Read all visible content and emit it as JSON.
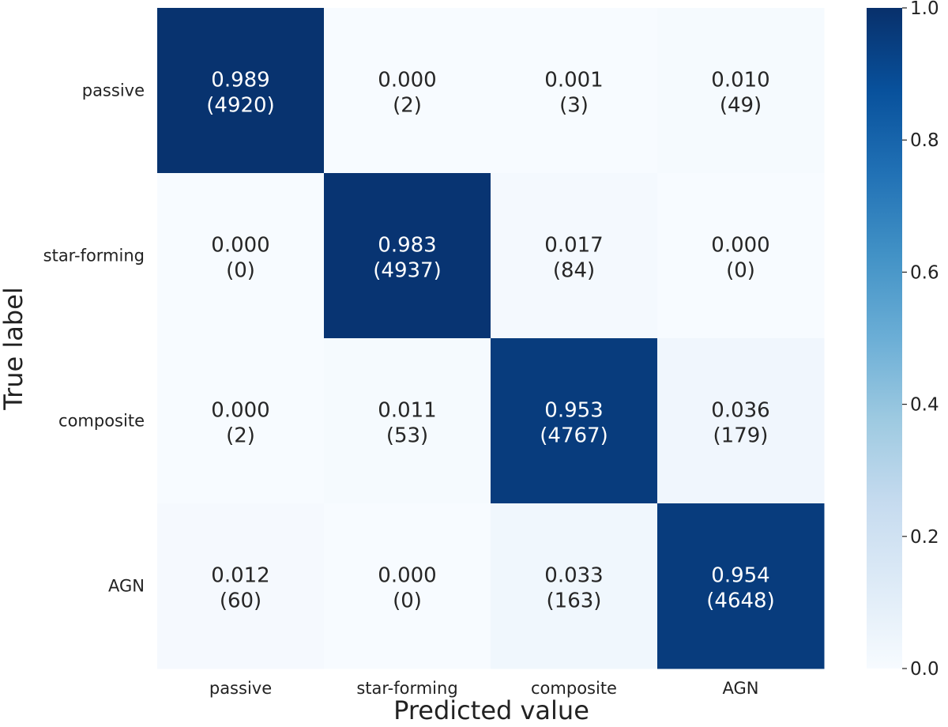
{
  "chart_data": {
    "type": "heatmap",
    "title": "",
    "xlabel": "Predicted value",
    "ylabel": "True label",
    "x_categories": [
      "passive",
      "star-forming",
      "composite",
      "AGN"
    ],
    "y_categories": [
      "passive",
      "star-forming",
      "composite",
      "AGN"
    ],
    "values": [
      [
        0.989,
        0.0,
        0.001,
        0.01
      ],
      [
        0.0,
        0.983,
        0.017,
        0.0
      ],
      [
        0.0,
        0.011,
        0.953,
        0.036
      ],
      [
        0.012,
        0.0,
        0.033,
        0.954
      ]
    ],
    "value_labels": [
      [
        "0.989",
        "0.000",
        "0.001",
        "0.010"
      ],
      [
        "0.000",
        "0.983",
        "0.017",
        "0.000"
      ],
      [
        "0.000",
        "0.011",
        "0.953",
        "0.036"
      ],
      [
        "0.012",
        "0.000",
        "0.033",
        "0.954"
      ]
    ],
    "count_labels": [
      [
        "(4920)",
        "(2)",
        "(3)",
        "(49)"
      ],
      [
        "(0)",
        "(4937)",
        "(84)",
        "(0)"
      ],
      [
        "(2)",
        "(53)",
        "(4767)",
        "(179)"
      ],
      [
        "(60)",
        "(0)",
        "(163)",
        "(4648)"
      ]
    ],
    "colorbar": {
      "range": [
        0.0,
        1.0
      ],
      "ticks": [
        0.0,
        0.2,
        0.4,
        0.6,
        0.8,
        1.0
      ],
      "tick_labels": [
        "0.0",
        "0.2",
        "0.4",
        "0.6",
        "0.8",
        "1.0"
      ],
      "colormap": "Blues",
      "low_color": "#f7fbff",
      "high_color": "#08306b"
    },
    "grid": false,
    "legend": "colorbar-right"
  }
}
